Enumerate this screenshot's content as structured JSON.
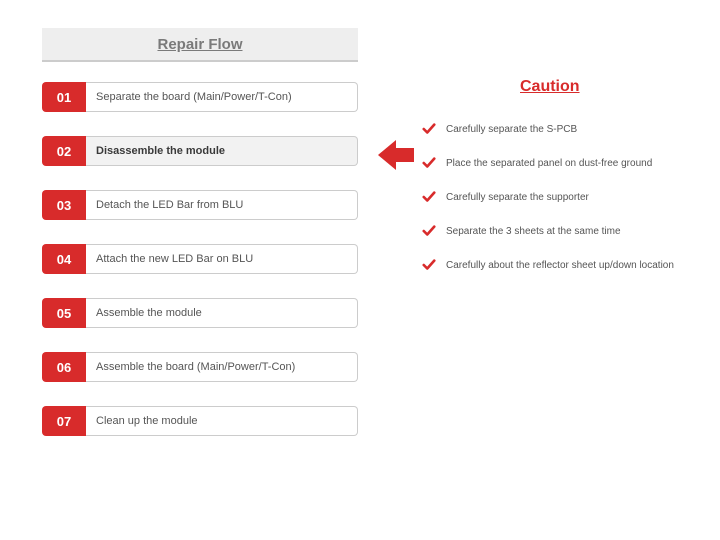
{
  "title": "Repair Flow",
  "accent_color": "#d82b2b",
  "text_color": "#555555",
  "title_color": "#7a7a7a",
  "highlight_bg": "#f2f2f2",
  "steps": [
    {
      "num": "01",
      "label": "Separate the board (Main/Power/T-Con)",
      "highlight": false
    },
    {
      "num": "02",
      "label": "Disassemble the module",
      "highlight": true
    },
    {
      "num": "03",
      "label": "Detach the LED Bar from BLU",
      "highlight": false
    },
    {
      "num": "04",
      "label": "Attach the new LED Bar on BLU",
      "highlight": false
    },
    {
      "num": "05",
      "label": "Assemble the module",
      "highlight": false
    },
    {
      "num": "06",
      "label": "Assemble the board (Main/Power/T-Con)",
      "highlight": false
    },
    {
      "num": "07",
      "label": "Clean up the module",
      "highlight": false
    }
  ],
  "caution": {
    "title": "Caution",
    "items": [
      "Carefully separate the S-PCB",
      "Place the separated panel on dust-free ground",
      "Carefully separate the supporter",
      "Separate the 3 sheets at the same time",
      "Carefully about the reflector sheet up/down location"
    ]
  }
}
